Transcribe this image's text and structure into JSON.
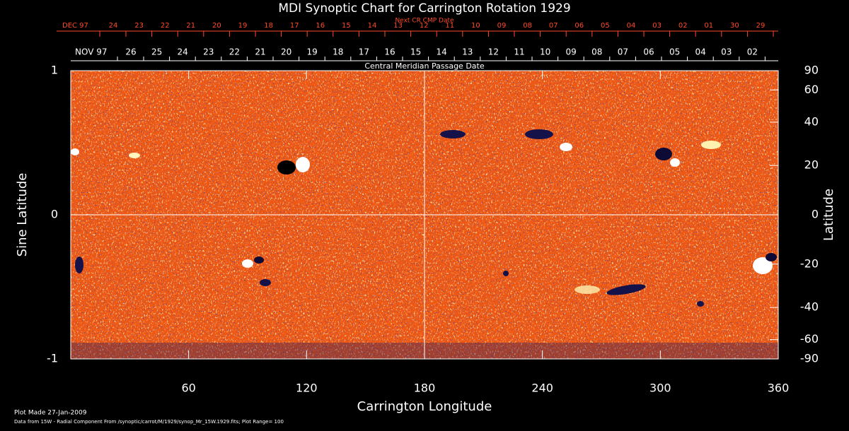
{
  "chart_data": {
    "type": "synoptic-map",
    "title": "MDI Synoptic Chart for Carrington Rotation 1929",
    "top_axis_title": "Next CR CMP Date",
    "top_dates": [
      "DEC 97",
      "24",
      "23",
      "22",
      "21",
      "20",
      "19",
      "18",
      "17",
      "16",
      "15",
      "14",
      "13",
      "12",
      "11",
      "10",
      "09",
      "08",
      "07",
      "06",
      "05",
      "04",
      "03",
      "02",
      "01",
      "30",
      "29"
    ],
    "bottom_axis_title": "Central Meridian Passage Date",
    "bottom_dates": [
      "NOV 97",
      "26",
      "25",
      "24",
      "23",
      "22",
      "21",
      "20",
      "19",
      "18",
      "17",
      "16",
      "15",
      "14",
      "13",
      "12",
      "11",
      "10",
      "09",
      "08",
      "07",
      "06",
      "05",
      "04",
      "03",
      "02"
    ],
    "xlabel": "Carrington Longitude",
    "ylabel": "Sine Latitude",
    "y2label": "Latitude",
    "xlim": [
      0,
      360
    ],
    "xticks": [
      60,
      120,
      180,
      240,
      300,
      360
    ],
    "ylim": [
      -1,
      1
    ],
    "yticks": [
      -1,
      0,
      1
    ],
    "y2lim": [
      -90,
      90
    ],
    "y2ticks": [
      90,
      60,
      40,
      20,
      0,
      -20,
      -40,
      -60,
      -90
    ],
    "y2scale": "sine"
  },
  "footer": {
    "plot_made": "Plot Made 27-Jan-2009",
    "source": "Data from 15W - Radial Component From /synoptic/carrot/M/1929/synop_Mr_15W.1929.fits; Plot Range=  100"
  }
}
